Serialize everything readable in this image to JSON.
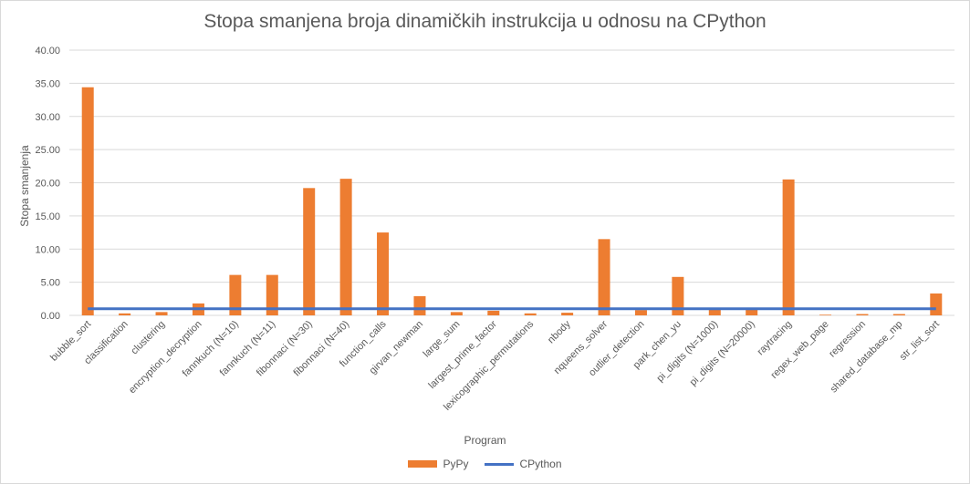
{
  "colors": {
    "pypy": "#ED7D31",
    "cpython": "#4472C4",
    "grid": "#d9d9d9",
    "text": "#595959"
  },
  "chart_data": {
    "type": "bar",
    "title": "Stopa smanjena broja dinamičkih instrukcija u odnosu na CPython",
    "xlabel": "Program",
    "ylabel": "Stopa smanjenja",
    "ylim": [
      0,
      40
    ],
    "yticks": [
      "0.00",
      "5.00",
      "10.00",
      "15.00",
      "20.00",
      "25.00",
      "30.00",
      "35.00",
      "40.00"
    ],
    "grid": true,
    "legend_position": "bottom",
    "categories": [
      "bubble_sort",
      "classification",
      "clustering",
      "encryption_decryption",
      "fannkuch (N=10)",
      "fannkuch (N=11)",
      "fibonnaci (N=30)",
      "fibonnaci (N=40)",
      "function_calls",
      "girvan_newman",
      "large_sum",
      "largest_prime_factor",
      "lexicographic_permutations",
      "nbody",
      "nqueens_solver",
      "outlier_detection",
      "park_chen_yu",
      "pi_digits (N=1000)",
      "pi_digits (N=20000)",
      "raytracing",
      "regex_web_page",
      "regression",
      "shared_database_mp",
      "str_list_sort"
    ],
    "series": [
      {
        "name": "PyPy",
        "kind": "bar",
        "values": [
          34.4,
          0.3,
          0.5,
          1.8,
          6.1,
          6.1,
          19.2,
          20.6,
          12.5,
          2.9,
          0.5,
          0.7,
          0.3,
          0.4,
          11.5,
          0.8,
          5.8,
          0.9,
          0.9,
          20.5,
          0.1,
          0.2,
          0.2,
          3.3
        ]
      },
      {
        "name": "CPython",
        "kind": "line",
        "values": [
          1,
          1,
          1,
          1,
          1,
          1,
          1,
          1,
          1,
          1,
          1,
          1,
          1,
          1,
          1,
          1,
          1,
          1,
          1,
          1,
          1,
          1,
          1,
          1
        ]
      }
    ]
  }
}
